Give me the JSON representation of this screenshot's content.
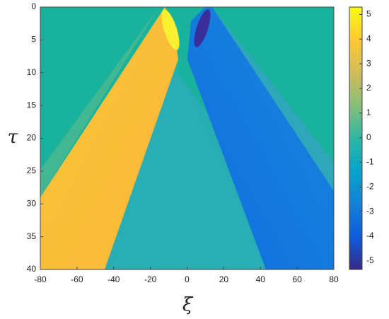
{
  "chart_data": {
    "type": "heatmap",
    "x_label": "ξ",
    "y_label": "τ",
    "xlim": [
      -80,
      80
    ],
    "xticks": [
      -80,
      -60,
      -40,
      -20,
      0,
      20,
      40,
      60,
      80
    ],
    "ylim": [
      40,
      0
    ],
    "yticks": [
      0,
      5,
      10,
      15,
      20,
      25,
      30,
      35,
      40
    ],
    "colorbar": {
      "lim": [
        -5.35,
        5.3
      ],
      "ticks": [
        -5,
        -4,
        -3,
        -2,
        -1,
        0,
        1,
        2,
        3,
        4,
        5
      ],
      "colormap": [
        "#352a87",
        "#0f5cdd",
        "#1481d6",
        "#06a4ca",
        "#2eb7a4",
        "#87bf77",
        "#d1bb59",
        "#fec832",
        "#f9fb0e"
      ]
    }
  }
}
